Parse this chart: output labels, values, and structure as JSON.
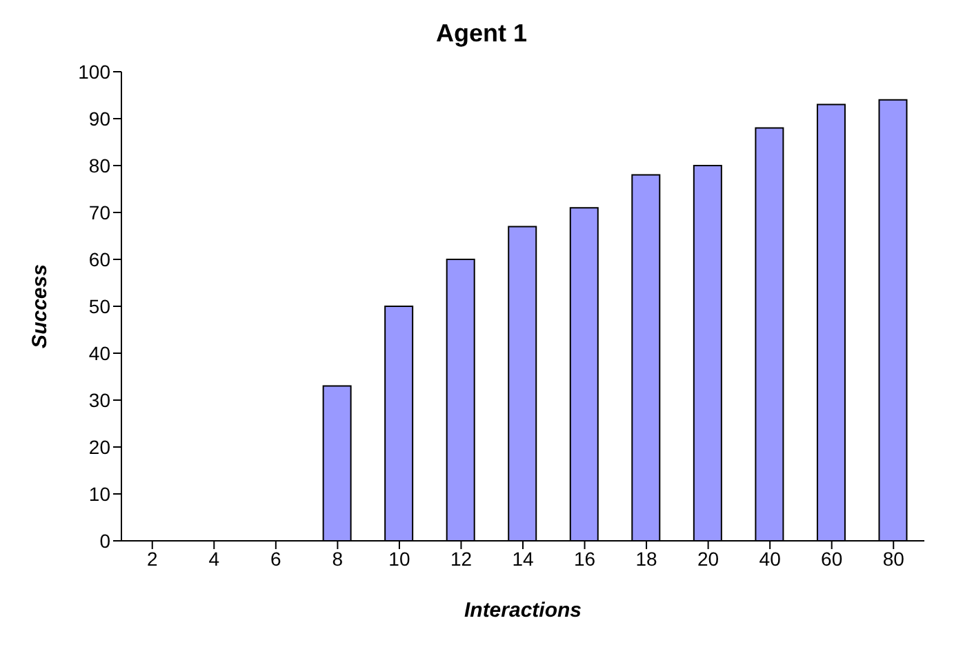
{
  "chart_data": {
    "type": "bar",
    "title": "Agent 1",
    "xlabel": "Interactions",
    "ylabel": "Success",
    "categories": [
      "2",
      "4",
      "6",
      "8",
      "10",
      "12",
      "14",
      "16",
      "18",
      "20",
      "40",
      "60",
      "80"
    ],
    "values": [
      0,
      0,
      0,
      33,
      50,
      60,
      67,
      71,
      78,
      80,
      88,
      93,
      94
    ],
    "color": "#9999ff",
    "ylim": [
      0,
      100
    ],
    "yticks": [
      0,
      10,
      20,
      30,
      40,
      50,
      60,
      70,
      80,
      90,
      100
    ],
    "grid": false
  }
}
